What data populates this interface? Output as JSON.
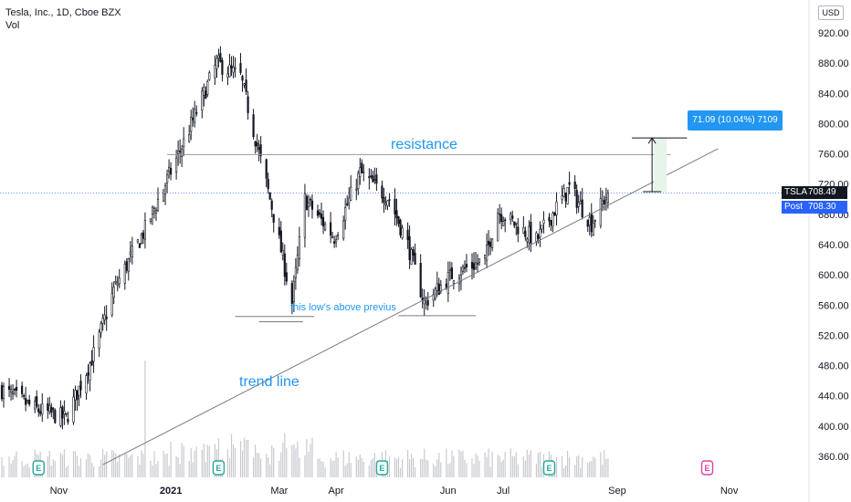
{
  "legend": {
    "title": "Tesla, Inc., 1D, Cboe BZX",
    "volume_label": "Vol"
  },
  "price_scale": {
    "currency": "USD",
    "last_symbol": "TSLA",
    "last_price": "708.49",
    "post_label": "Post",
    "post_price": "708.30"
  },
  "measure": {
    "label": "71.09 (10.04%) 7109"
  },
  "annotations": {
    "resistance": "resistance",
    "trend_line": "trend line",
    "low_note": "this low's above previus"
  },
  "colors": {
    "candle": "#131722",
    "volume": "#c8cad0",
    "annotation": "#2196f3",
    "last_price_line": "#2962ff",
    "measure_fill": "#e6f4e9",
    "earnings_marker": "#26a69a",
    "future_earnings_marker": "#e040a0"
  },
  "icons": {
    "earnings": "earnings-e-icon"
  },
  "chart_data": {
    "type": "candlestick",
    "title": "Tesla, Inc., 1D, Cboe BZX",
    "xlabel": "",
    "ylabel": "",
    "ylim": [
      340,
      930
    ],
    "y_ticks": [
      "920.00",
      "880.00",
      "840.00",
      "800.00",
      "760.00",
      "720.00",
      "680.00",
      "640.00",
      "600.00",
      "560.00",
      "520.00",
      "480.00",
      "440.00",
      "400.00",
      "360.00"
    ],
    "y_tick_values": [
      920,
      880,
      840,
      800,
      760,
      720,
      680,
      640,
      600,
      560,
      520,
      480,
      440,
      400,
      360
    ],
    "x_ticks": [
      "Nov",
      "2021",
      "Mar",
      "Apr",
      "Jun",
      "Jul",
      "Sep",
      "Nov"
    ],
    "x_tick_dates": [
      "2020-11-01",
      "2021-01-01",
      "2021-03-01",
      "2021-04-01",
      "2021-06-01",
      "2021-07-01",
      "2021-09-01",
      "2021-11-01"
    ],
    "key_prices": [
      {
        "date": "2020-10-01",
        "close": 448
      },
      {
        "date": "2020-10-20",
        "close": 422
      },
      {
        "date": "2020-11-05",
        "close": 410
      },
      {
        "date": "2020-11-20",
        "close": 495
      },
      {
        "date": "2020-12-01",
        "close": 580
      },
      {
        "date": "2020-12-18",
        "close": 660
      },
      {
        "date": "2021-01-08",
        "close": 775
      },
      {
        "date": "2021-01-26",
        "close": 880
      },
      {
        "date": "2021-02-08",
        "close": 862
      },
      {
        "date": "2021-02-25",
        "close": 690
      },
      {
        "date": "2021-03-08",
        "close": 563
      },
      {
        "date": "2021-03-15",
        "close": 700
      },
      {
        "date": "2021-03-31",
        "close": 650
      },
      {
        "date": "2021-04-14",
        "close": 735
      },
      {
        "date": "2021-04-30",
        "close": 700
      },
      {
        "date": "2021-05-10",
        "close": 640
      },
      {
        "date": "2021-05-19",
        "close": 563
      },
      {
        "date": "2021-06-03",
        "close": 600
      },
      {
        "date": "2021-06-21",
        "close": 620
      },
      {
        "date": "2021-06-28",
        "close": 685
      },
      {
        "date": "2021-07-19",
        "close": 645
      },
      {
        "date": "2021-07-30",
        "close": 690
      },
      {
        "date": "2021-08-06",
        "close": 715
      },
      {
        "date": "2021-08-18",
        "close": 668
      },
      {
        "date": "2021-08-27",
        "close": 708.49
      }
    ],
    "last_price": 708.49,
    "post_price": 708.3,
    "volume_spike_date": "2020-12-18",
    "earnings_dates": [
      "2020-10-21",
      "2021-01-27",
      "2021-04-26",
      "2021-07-26",
      "2021-10-20"
    ],
    "drawings": {
      "resistance_level": 759,
      "resistance_range": [
        "2020-12-30",
        "2021-09-30"
      ],
      "trend_line": [
        {
          "date": "2020-11-25",
          "price": 349
        },
        {
          "date": "2021-10-26",
          "price": 767
        }
      ],
      "low_line_1": {
        "price": 545,
        "range": [
          "2021-02-05",
          "2021-03-20"
        ]
      },
      "low_line_2": {
        "price": 546,
        "range": [
          "2021-05-05",
          "2021-06-16"
        ]
      },
      "low_tick": {
        "price": 538,
        "range": [
          "2021-02-18",
          "2021-03-14"
        ]
      },
      "measure": {
        "from": 710,
        "to": 781,
        "date_range": [
          "2021-09-21",
          "2021-09-28"
        ]
      }
    }
  }
}
